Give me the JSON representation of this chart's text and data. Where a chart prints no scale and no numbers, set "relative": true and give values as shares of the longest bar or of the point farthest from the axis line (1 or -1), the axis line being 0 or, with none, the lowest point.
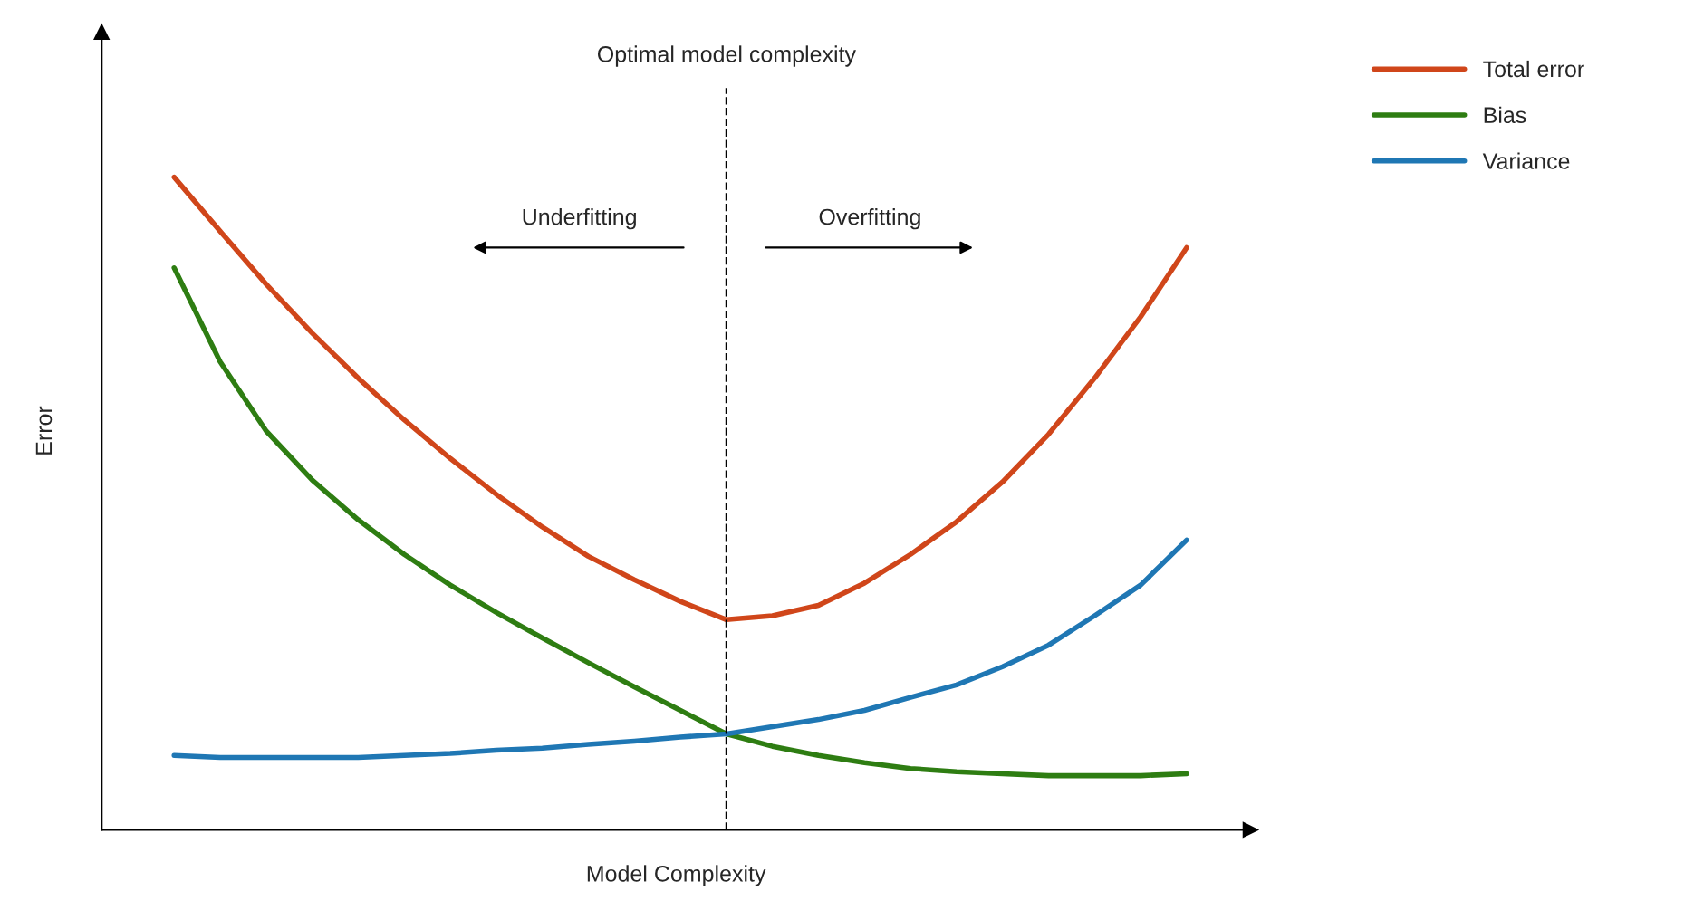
{
  "chart_data": {
    "type": "line",
    "relative": true,
    "xlabel": "Model Complexity",
    "ylabel": "Error",
    "categories": [
      null,
      null,
      null,
      null,
      null,
      null,
      null,
      null,
      null,
      null,
      null,
      null,
      null,
      null,
      null,
      null,
      null,
      null,
      null,
      null,
      null,
      null,
      null
    ],
    "series": [
      {
        "name": "Total error",
        "color": "#d0461a",
        "values": [
          1,
          0.917,
          0.836,
          0.761,
          0.692,
          0.628,
          0.569,
          0.514,
          0.464,
          0.419,
          0.383,
          0.35,
          0.322,
          0.328,
          0.344,
          0.378,
          0.422,
          0.472,
          0.533,
          0.606,
          0.692,
          0.786,
          0.892
        ]
      },
      {
        "name": "Bias",
        "color": "#2e7d12",
        "values": [
          0.861,
          0.717,
          0.611,
          0.536,
          0.475,
          0.422,
          0.375,
          0.333,
          0.294,
          0.256,
          0.219,
          0.183,
          0.147,
          0.128,
          0.114,
          0.103,
          0.094,
          0.089,
          0.086,
          0.083,
          0.083,
          0.083,
          0.086
        ]
      },
      {
        "name": "Variance",
        "color": "#1f77b4",
        "values": [
          0.114,
          0.111,
          0.111,
          0.111,
          0.111,
          0.114,
          0.117,
          0.122,
          0.125,
          0.131,
          0.136,
          0.142,
          0.147,
          0.158,
          0.169,
          0.183,
          0.203,
          0.222,
          0.25,
          0.283,
          0.328,
          0.375,
          0.444
        ]
      }
    ],
    "annotations": [
      "Optimal model complexity",
      "Underfitting",
      "Overfitting"
    ],
    "legend": "right",
    "marker": "none",
    "line_style": "solid"
  }
}
